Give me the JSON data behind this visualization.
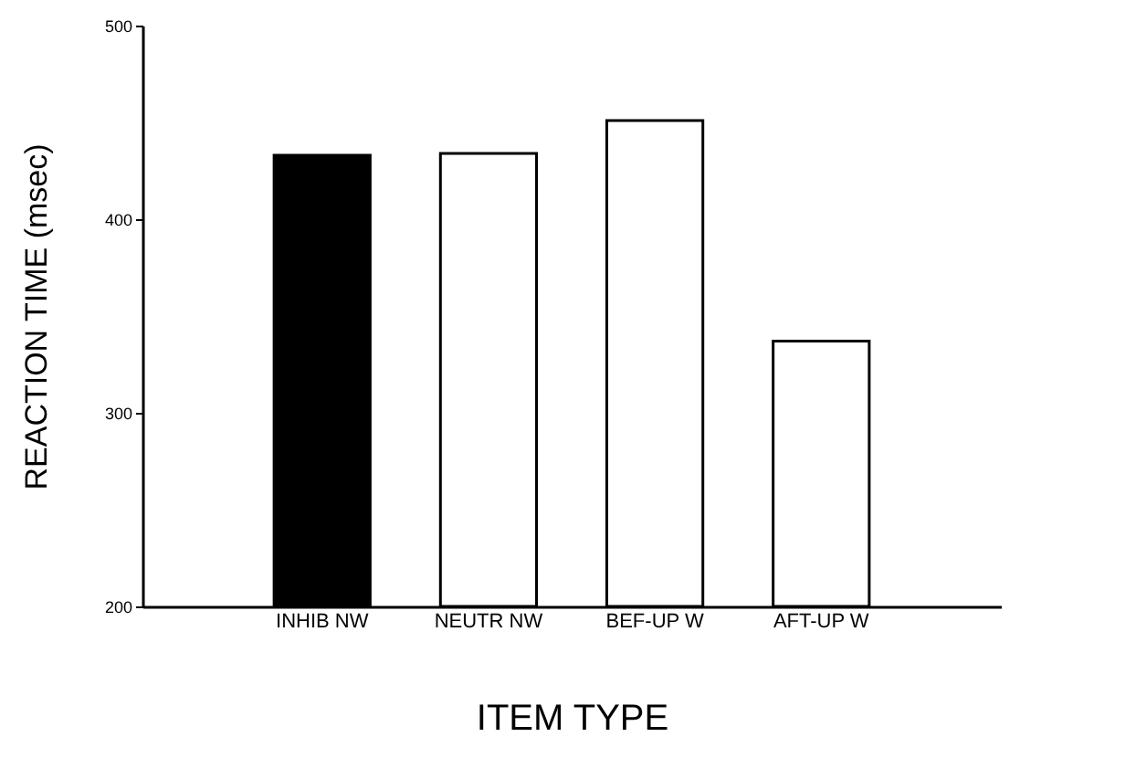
{
  "chart_data": {
    "type": "bar",
    "xlabel": "ITEM TYPE",
    "ylabel": "REACTION TIME (msec)",
    "categories": [
      "INHIB NW",
      "NEUTR NW",
      "BEF-UP W",
      "AFT-UP W"
    ],
    "values": [
      433,
      434,
      451,
      337
    ],
    "colors": [
      "#000000",
      "#ffffff",
      "#ffffff",
      "#ffffff"
    ],
    "ylim": [
      200,
      500
    ],
    "yticks": [
      200,
      300,
      400,
      500
    ],
    "grid": false
  }
}
